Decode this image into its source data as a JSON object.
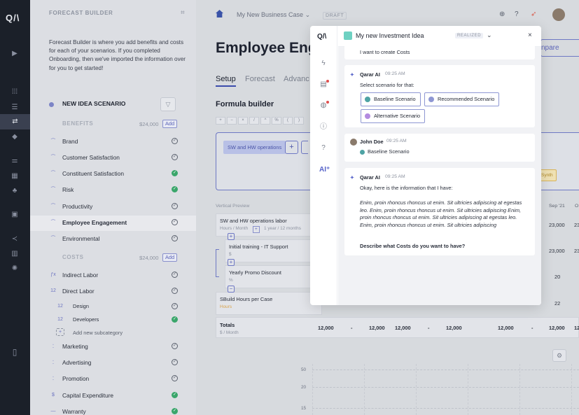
{
  "rail": {
    "logo": "Q/\\",
    "icons": [
      "play-icon",
      "grid-icon",
      "list-icon",
      "flow-icon",
      "cube-icon",
      "sliders-icon",
      "table-icon",
      "share-icon",
      "dashboard-icon",
      "share-nodes-icon",
      "bar-chart-icon",
      "settings-icon",
      "panel-icon"
    ]
  },
  "left": {
    "header": "FORECAST BUILDER",
    "description": "Forecast Builder is where you add benefits and costs for each of your scenarios. If you completed Onboarding, then we've imported the information over for you to get started!",
    "scenario": "NEW IDEA SCENARIO",
    "benefits": {
      "label": "BENEFITS",
      "amount": "$24,000",
      "add": "Add"
    },
    "benefit_items": [
      {
        "label": "Brand",
        "status": "empty"
      },
      {
        "label": "Customer Satisfaction",
        "status": "empty"
      },
      {
        "label": "Constituent Satisfaction",
        "status": "ok"
      },
      {
        "label": "Risk",
        "status": "ok"
      },
      {
        "label": "Productivity",
        "status": "empty"
      },
      {
        "label": "Employee Engagement",
        "status": "empty"
      },
      {
        "label": "Environmental",
        "status": "empty"
      }
    ],
    "costs": {
      "label": "COSTS",
      "amount": "$24,000",
      "add": "Add"
    },
    "cost_items": [
      {
        "label": "Indirect Labor",
        "status": "empty"
      },
      {
        "label": "Direct Labor",
        "status": "empty"
      },
      {
        "label": "Design",
        "status": "empty"
      },
      {
        "label": "Developers",
        "status": "ok"
      },
      {
        "label": "Add new subcategory",
        "status": ""
      },
      {
        "label": "Marketing",
        "status": "empty"
      },
      {
        "label": "Advertising",
        "status": "empty"
      },
      {
        "label": "Promotion",
        "status": "empty"
      },
      {
        "label": "Capital Expenditure",
        "status": "ok"
      },
      {
        "label": "Warranty",
        "status": "ok"
      }
    ]
  },
  "main": {
    "breadcrumb": "My New Business Case",
    "draft": "DRAFT",
    "title": "Employee Eng",
    "compare": "npare",
    "tabs": [
      "Setup",
      "Forecast",
      "Advanc"
    ],
    "formula_title": "Formula builder",
    "ops": [
      "+",
      "−",
      "×",
      "/",
      "^",
      "%",
      "(",
      ")"
    ],
    "chip": "SW and HW operations",
    "synth": "Synth",
    "preview_label": "Vertical Preview",
    "month_headers": [
      "Sep '21",
      "O"
    ],
    "rows": [
      {
        "name": "SW and HW operations labor",
        "sub": "Hours / Month",
        "sub2": "1 year / 12 months",
        "val": "23,000",
        "val2": "23"
      },
      {
        "name": "Initial training - IT Support",
        "sub": "$",
        "val": "23,000",
        "val2": "23"
      },
      {
        "name": "Yearly Promo Discount",
        "sub": "%",
        "val": "20",
        "val2": ""
      },
      {
        "name": "SBuild Hours per Case",
        "sub": "Hours",
        "val": "22",
        "val2": ""
      }
    ],
    "totals": {
      "label": "Totals",
      "unit": "$ / Month",
      "values": [
        "12,000",
        "-",
        "12,000",
        "12,000",
        "-",
        "12,000",
        "12,000",
        "-",
        "12,000",
        "12"
      ]
    },
    "y_ticks": [
      "50",
      "20",
      "15"
    ]
  },
  "modal": {
    "title": "My new Investment Idea",
    "badge": "REALIZED",
    "close": "×",
    "logo": "Q/\\",
    "messages": {
      "prev": "I want to create Costs",
      "ai1": {
        "name": "Qarar AI",
        "time": "09:25 AM",
        "text": "Select scenario for that:",
        "options": [
          {
            "label": "Baseline Scenario",
            "color": "#4ea3a4"
          },
          {
            "label": "Recommended Scenario",
            "color": "#8e97d3"
          },
          {
            "label": "Alternative Scenario",
            "color": "#b38be0"
          }
        ]
      },
      "user": {
        "name": "John Doe",
        "time": "09:25 AM",
        "text": "Baseline Scenario"
      },
      "ai2": {
        "name": "Qarar AI",
        "time": "09:25 AM",
        "intro": "Okay, here is the information that I have:",
        "body": "Enim, proin rhoncus rhoncus ut enim. Sit ultricies adipiscing at egestas leo. Enim, proin rhoncus rhoncus ut enim. Sit ultricies adipiscing Enim, proin rhoncus rhoncus ut enim. Sit ultricies adipiscing at egestas leo. Enim, proin rhoncus rhoncus ut enim. Sit ultricies adipiscing",
        "question": "Describe what Costs do you want to have?"
      }
    }
  }
}
